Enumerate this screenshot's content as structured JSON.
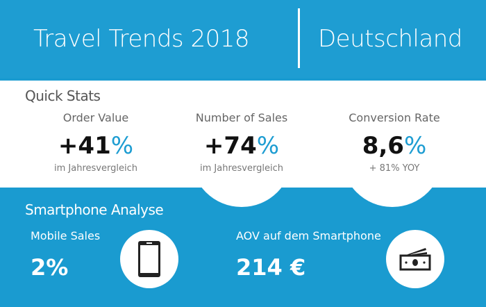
{
  "header": {
    "title": "Travel Trends 2018",
    "region": "Deutschland"
  },
  "quick_stats": {
    "heading": "Quick Stats",
    "items": [
      {
        "label": "Order Value",
        "prefix": "+",
        "value": "41",
        "unit": "%",
        "sub": "im Jahresvergleich"
      },
      {
        "label": "Number of Sales",
        "prefix": "+",
        "value": "74",
        "unit": "%",
        "sub": "im Jahresvergleich"
      },
      {
        "label": "Conversion Rate",
        "prefix": "",
        "value": "8,6",
        "unit": "%",
        "sub": "+ 81% YOY"
      }
    ]
  },
  "smartphone": {
    "heading": "Smartphone Analyse",
    "mobile_sales": {
      "label": "Mobile Sales",
      "value": "2%",
      "icon": "smartphone-icon"
    },
    "aov": {
      "label": "AOV auf dem Smartphone",
      "value": "214 €",
      "icon": "money-icon"
    }
  },
  "colors": {
    "accent": "#1e9dd2"
  }
}
